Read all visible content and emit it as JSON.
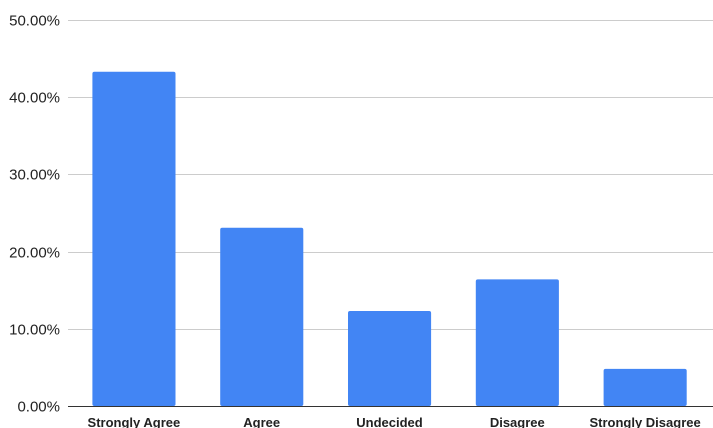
{
  "chart_data": {
    "type": "bar",
    "categories": [
      "Strongly Agree",
      "Agree",
      "Undecided",
      "Disagree",
      "Strongly Disagree"
    ],
    "values": [
      43.3,
      23.1,
      12.3,
      16.4,
      4.8
    ],
    "y_ticks": [
      "0.00%",
      "10.00%",
      "20.00%",
      "30.00%",
      "40.00%",
      "50.00%"
    ],
    "ylim": [
      0,
      50
    ],
    "grid": true,
    "legend": "none",
    "bar_color": "#4285f4"
  }
}
